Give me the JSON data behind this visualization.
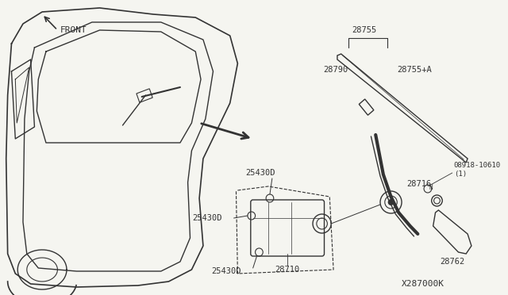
{
  "bg_color": "#f5f5f0",
  "line_color": "#333333",
  "title": "",
  "diagram_code": "X287000K",
  "labels": {
    "front": "FRONT",
    "28755": "28755",
    "28790": "28790",
    "28755A": "28755+A",
    "25430D_1": "25430D",
    "25430D_2": "25430D",
    "25430D_3": "25430D",
    "28716": "28716",
    "28710": "28710",
    "28762": "28762",
    "08918": "08918-10610\n(1)"
  },
  "font_size": 7.5
}
